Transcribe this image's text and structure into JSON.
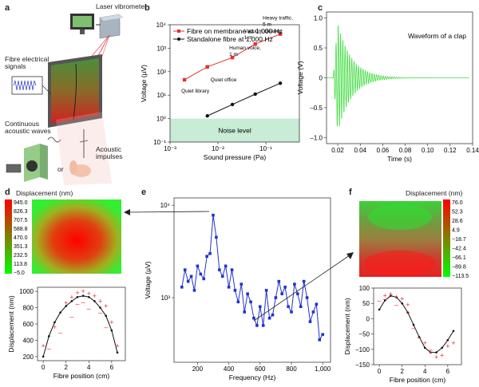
{
  "panels": {
    "a": {
      "letter": "a",
      "labels": {
        "laser": "Laser vibrometer",
        "fibre_signals": "Fibre electrical\nsignals",
        "continuous": "Continuous\nacoustic waves",
        "impulses": "Acoustic\nimpulses",
        "or": "or"
      }
    },
    "b": {
      "letter": "b"
    },
    "c": {
      "letter": "c"
    },
    "d": {
      "letter": "d",
      "title": "Displacement (nm)"
    },
    "e": {
      "letter": "e"
    },
    "f": {
      "letter": "f",
      "title": "Displacement (nm)"
    }
  },
  "chart_data": [
    {
      "id": "b",
      "type": "line",
      "xlabel": "Sound pressure (Pa)",
      "ylabel": "Voltage (µV)",
      "xscale": "log",
      "yscale": "log",
      "xlim": [
        0.001,
        0.5
      ],
      "ylim": [
        0.1,
        10000
      ],
      "xticks": [
        "10⁻³",
        "10⁻²",
        "10⁻¹"
      ],
      "yticks": [
        "10⁻¹",
        "10⁰",
        "10¹",
        "10²",
        "10³",
        "10⁴"
      ],
      "legend": "top-left",
      "series": [
        {
          "name": "Fibre on membrane at 1,000 Hz",
          "color": "#e03030",
          "x": [
            0.002,
            0.006,
            0.02,
            0.06,
            0.2
          ],
          "y": [
            45,
            160,
            400,
            1500,
            4000
          ]
        },
        {
          "name": "Standalone fibre at 1,000 Hz",
          "color": "#111111",
          "x": [
            0.006,
            0.02,
            0.06,
            0.2
          ],
          "y": [
            1.3,
            4,
            11,
            32
          ]
        }
      ],
      "annotations": [
        "Quiet library",
        "Quiet office",
        "Human voice,\n1 m",
        "Vacuum cleaner,\n1 m",
        "Heavy traffic,\n5 m"
      ],
      "band": {
        "label": "Noise level",
        "range": [
          0.1,
          1.0
        ],
        "color": "#c8ecd6"
      }
    },
    {
      "id": "c",
      "type": "line",
      "title": "Waveform of a clap",
      "xlabel": "Time (s)",
      "ylabel": "Voltage (V)",
      "xlim": [
        0.01,
        0.14
      ],
      "ylim": [
        -1.1,
        1.1
      ],
      "xticks": [
        "0.02",
        "0.04",
        "0.06",
        "0.08",
        "0.10",
        "0.12",
        "0.14"
      ],
      "yticks": [
        "1.0",
        "0.5",
        "0",
        "–0.5",
        "–1.0"
      ],
      "color": "#44dd44",
      "envelope": {
        "start": 0.016,
        "peak": 0.95,
        "decay": 0.012,
        "freq": 500
      }
    },
    {
      "id": "d",
      "type": "heatmap",
      "colorbar_ticks": [
        "945.0",
        "826.3",
        "707.5",
        "588.8",
        "470.0",
        "351.3",
        "232.5",
        "113.8",
        "−5.0"
      ],
      "vmin": -5.0,
      "vmax": 945.0
    },
    {
      "id": "d_profile",
      "type": "scatter",
      "xlabel": "Fibre position (cm)",
      "ylabel": "Displacement (nm)",
      "xlim": [
        -0.5,
        7.2
      ],
      "ylim": [
        150,
        1050
      ],
      "xticks": [
        "0",
        "2",
        "4",
        "6"
      ],
      "yticks": [
        "200",
        "400",
        "600",
        "800",
        "1000"
      ],
      "fit": {
        "x": [
          0,
          0.5,
          1,
          1.5,
          2,
          2.5,
          3,
          3.5,
          4,
          4.5,
          5,
          5.5,
          6,
          6.5
        ],
        "y": [
          200,
          450,
          620,
          740,
          820,
          880,
          930,
          945,
          930,
          880,
          800,
          700,
          520,
          250
        ]
      },
      "plus": {
        "x": [
          0,
          1,
          2,
          2.5,
          3,
          3.5,
          4,
          4.5,
          5,
          5.5,
          6,
          6.5
        ],
        "y": [
          330,
          560,
          860,
          930,
          980,
          1000,
          970,
          940,
          880,
          820,
          620,
          330
        ]
      },
      "minus": {
        "x": [
          0.5,
          1.5,
          2.5,
          3,
          3.5,
          4,
          5,
          5.5
        ],
        "y": [
          300,
          490,
          690,
          850,
          870,
          790,
          740,
          560
        ]
      }
    },
    {
      "id": "e",
      "type": "line",
      "xlabel": "Frequency (Hz)",
      "ylabel": "Voltage (µV)",
      "yscale": "log",
      "xlim": [
        50,
        1050
      ],
      "ylim": [
        200,
        12000
      ],
      "xticks": [
        "200",
        "400",
        "600",
        "800",
        "1,000"
      ],
      "yticks": [
        "10³",
        "10⁴"
      ],
      "color": "#2233cc",
      "x": [
        100,
        120,
        140,
        160,
        180,
        200,
        220,
        240,
        260,
        280,
        300,
        320,
        340,
        360,
        380,
        400,
        420,
        440,
        460,
        480,
        500,
        520,
        540,
        560,
        580,
        600,
        620,
        640,
        660,
        680,
        700,
        720,
        740,
        760,
        780,
        800,
        820,
        840,
        860,
        880,
        900,
        920,
        940,
        960,
        980,
        1000
      ],
      "y": [
        1300,
        2000,
        1500,
        1700,
        1200,
        2200,
        1800,
        1600,
        2800,
        3000,
        7800,
        4500,
        2000,
        1700,
        2200,
        1300,
        2000,
        1200,
        900,
        1400,
        700,
        1100,
        900,
        600,
        500,
        800,
        500,
        1200,
        600,
        650,
        1000,
        1500,
        1100,
        1300,
        800,
        700,
        1400,
        1100,
        800,
        1500,
        1000,
        550,
        700,
        850,
        350,
        400
      ]
    },
    {
      "id": "f",
      "type": "heatmap",
      "colorbar_ticks": [
        "76.0",
        "52.3",
        "28.6",
        "4.9",
        "−18.7",
        "−42.4",
        "−66.1",
        "−89.8",
        "−113.5"
      ],
      "vmin": -113.5,
      "vmax": 76.0
    },
    {
      "id": "f_profile",
      "type": "scatter",
      "xlabel": "Fibre position (cm)",
      "ylabel": "Displacement (nm)",
      "xlim": [
        -0.5,
        7.2
      ],
      "ylim": [
        -150,
        100
      ],
      "xticks": [
        "0",
        "2",
        "4",
        "6"
      ],
      "yticks": [
        "100",
        "50",
        "0",
        "−50",
        "−100",
        "−150"
      ],
      "fit": {
        "x": [
          0,
          0.5,
          1,
          1.5,
          2,
          2.5,
          3,
          3.5,
          4,
          4.5,
          5,
          5.5,
          6,
          6.5
        ],
        "y": [
          30,
          60,
          75,
          70,
          50,
          20,
          -20,
          -60,
          -95,
          -110,
          -110,
          -95,
          -70,
          -40
        ]
      },
      "plus": {
        "x": [
          0.5,
          1,
          1.5,
          2,
          2.5,
          4,
          4.5,
          5,
          5.5,
          6,
          6.5
        ],
        "y": [
          75,
          80,
          70,
          65,
          45,
          -80,
          -110,
          -125,
          -120,
          -90,
          -80
        ]
      },
      "minus": {
        "x": [
          0,
          0.5,
          1.5,
          2.5,
          3,
          3.5,
          4.5
        ],
        "y": [
          60,
          65,
          45,
          20,
          -30,
          -60,
          -100
        ]
      }
    }
  ]
}
